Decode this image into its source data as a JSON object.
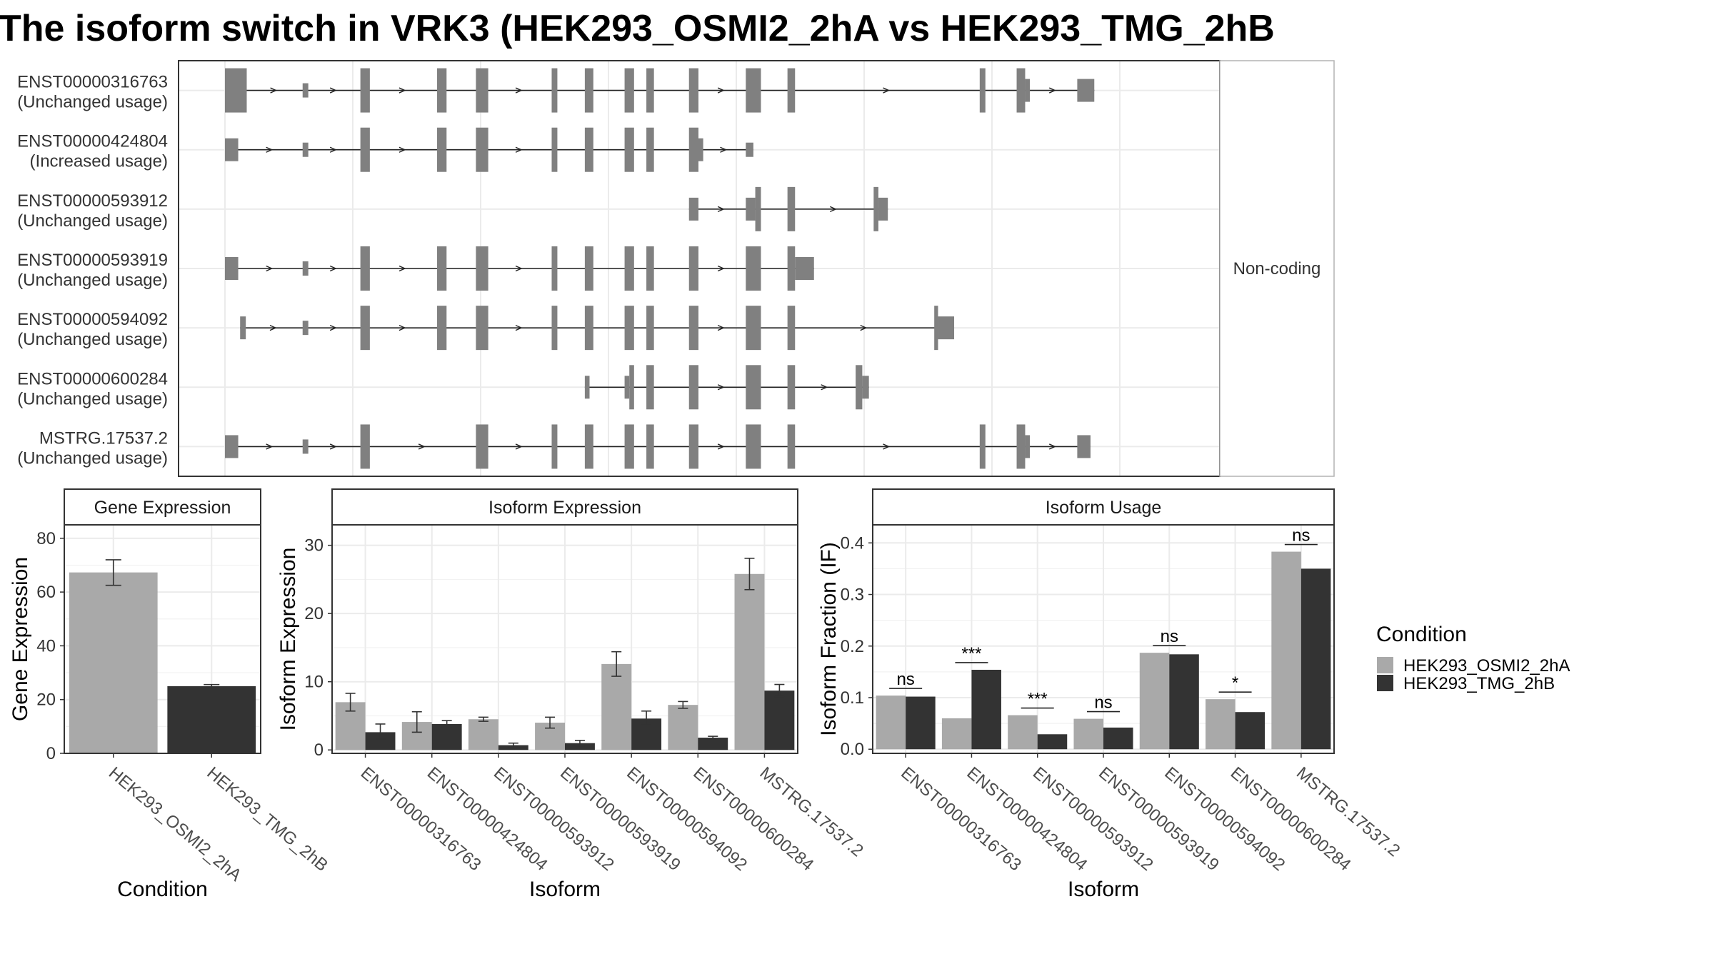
{
  "title": "The isoform switch in VRK3 (HEK293_OSMI2_2hA vs HEK293_TMG_2hB",
  "colors": {
    "cond1": "#a9a9a9",
    "cond2": "#333333",
    "exon": "#808080",
    "grid": "#ebebeb",
    "panel_border": "#333333",
    "strip_fill": "#ffffff"
  },
  "structure": {
    "side_label": "Non-coding",
    "xlim": [
      0,
      1000
    ],
    "transcripts": [
      {
        "id": "ENST00000316763",
        "usage": "(Unchanged usage)",
        "exons": [
          [
            0,
            23,
            "lg"
          ],
          [
            82,
            88,
            "sm"
          ],
          [
            143,
            153,
            "lg"
          ],
          [
            224,
            234,
            "lg"
          ],
          [
            265,
            278,
            "lg"
          ],
          [
            345,
            351,
            "lg"
          ],
          [
            380,
            389,
            "lg"
          ],
          [
            422,
            432,
            "lg"
          ],
          [
            445,
            453,
            "lg"
          ],
          [
            490,
            500,
            "lg"
          ],
          [
            550,
            566,
            "lg"
          ],
          [
            594,
            602,
            "lg"
          ],
          [
            797,
            803,
            "lg"
          ],
          [
            836,
            845,
            "lg"
          ],
          [
            845,
            850,
            "md"
          ],
          [
            900,
            918,
            "md"
          ]
        ]
      },
      {
        "id": "ENST00000424804",
        "usage": "(Increased usage)",
        "exons": [
          [
            0,
            14,
            "md"
          ],
          [
            82,
            88,
            "sm"
          ],
          [
            143,
            153,
            "lg"
          ],
          [
            224,
            234,
            "lg"
          ],
          [
            265,
            278,
            "lg"
          ],
          [
            345,
            351,
            "lg"
          ],
          [
            380,
            389,
            "lg"
          ],
          [
            422,
            432,
            "lg"
          ],
          [
            445,
            453,
            "lg"
          ],
          [
            490,
            500,
            "lg"
          ],
          [
            500,
            505,
            "md"
          ],
          [
            550,
            558,
            "sm"
          ]
        ]
      },
      {
        "id": "ENST00000593912",
        "usage": "(Unchanged usage)",
        "exons": [
          [
            490,
            500,
            "md"
          ],
          [
            550,
            560,
            "md"
          ],
          [
            560,
            566,
            "lg"
          ],
          [
            594,
            602,
            "lg"
          ],
          [
            685,
            690,
            "lg"
          ],
          [
            690,
            700,
            "md"
          ]
        ]
      },
      {
        "id": "ENST00000593919",
        "usage": "(Unchanged usage)",
        "exons": [
          [
            0,
            14,
            "md"
          ],
          [
            82,
            88,
            "sm"
          ],
          [
            143,
            153,
            "lg"
          ],
          [
            224,
            234,
            "lg"
          ],
          [
            265,
            278,
            "lg"
          ],
          [
            345,
            351,
            "lg"
          ],
          [
            380,
            389,
            "lg"
          ],
          [
            422,
            432,
            "lg"
          ],
          [
            445,
            453,
            "lg"
          ],
          [
            490,
            500,
            "lg"
          ],
          [
            550,
            566,
            "lg"
          ],
          [
            594,
            602,
            "lg"
          ],
          [
            602,
            622,
            "md"
          ]
        ]
      },
      {
        "id": "ENST00000594092",
        "usage": "(Unchanged usage)",
        "exons": [
          [
            16,
            22,
            "md"
          ],
          [
            82,
            88,
            "sm"
          ],
          [
            143,
            153,
            "lg"
          ],
          [
            224,
            234,
            "lg"
          ],
          [
            265,
            278,
            "lg"
          ],
          [
            345,
            351,
            "lg"
          ],
          [
            380,
            389,
            "lg"
          ],
          [
            422,
            432,
            "lg"
          ],
          [
            445,
            453,
            "lg"
          ],
          [
            490,
            500,
            "lg"
          ],
          [
            550,
            566,
            "lg"
          ],
          [
            594,
            602,
            "lg"
          ],
          [
            749,
            753,
            "lg"
          ],
          [
            753,
            770,
            "md"
          ]
        ]
      },
      {
        "id": "ENST00000600284",
        "usage": "(Unchanged usage)",
        "exons": [
          [
            380,
            385,
            "md"
          ],
          [
            422,
            427,
            "md"
          ],
          [
            427,
            432,
            "lg"
          ],
          [
            445,
            453,
            "lg"
          ],
          [
            490,
            500,
            "lg"
          ],
          [
            550,
            566,
            "lg"
          ],
          [
            594,
            602,
            "lg"
          ],
          [
            666,
            673,
            "lg"
          ],
          [
            673,
            680,
            "md"
          ]
        ]
      },
      {
        "id": "MSTRG.17537.2",
        "usage": "(Unchanged usage)",
        "exons": [
          [
            0,
            14,
            "md"
          ],
          [
            82,
            88,
            "sm"
          ],
          [
            143,
            153,
            "lg"
          ],
          [
            265,
            278,
            "lg"
          ],
          [
            345,
            351,
            "lg"
          ],
          [
            380,
            389,
            "lg"
          ],
          [
            422,
            432,
            "lg"
          ],
          [
            445,
            453,
            "lg"
          ],
          [
            490,
            500,
            "lg"
          ],
          [
            550,
            566,
            "lg"
          ],
          [
            594,
            602,
            "lg"
          ],
          [
            797,
            803,
            "lg"
          ],
          [
            836,
            845,
            "lg"
          ],
          [
            845,
            850,
            "md"
          ],
          [
            900,
            914,
            "md"
          ]
        ]
      }
    ]
  },
  "chart_data": [
    {
      "type": "bar",
      "title": "Gene Expression",
      "xlabel": "Condition",
      "ylabel": "Gene Expression",
      "ylim": [
        0,
        85
      ],
      "yticks": [
        0,
        20,
        40,
        60,
        80
      ],
      "categories": [
        "HEK293_OSMI2_2hA",
        "HEK293_TMG_2hB"
      ],
      "values": [
        67.3,
        25.0
      ],
      "errors": [
        [
          62.5,
          72.0
        ],
        [
          24.4,
          25.6
        ]
      ]
    },
    {
      "type": "bar",
      "title": "Isoform Expression",
      "xlabel": "Isoform",
      "ylabel": "Isoform Expression",
      "ylim": [
        -0.5,
        33
      ],
      "yticks": [
        0,
        10,
        20,
        30
      ],
      "categories": [
        "ENST00000316763",
        "ENST00000424804",
        "ENST00000593912",
        "ENST00000593919",
        "ENST00000594092",
        "ENST00000600284",
        "MSTRG.17537.2"
      ],
      "series": [
        {
          "name": "HEK293_OSMI2_2hA",
          "values": [
            7.0,
            4.1,
            4.5,
            4.0,
            12.6,
            6.6,
            25.8
          ],
          "errors": [
            [
              5.7,
              8.3
            ],
            [
              2.6,
              5.6
            ],
            [
              4.2,
              4.8
            ],
            [
              3.2,
              4.8
            ],
            [
              10.8,
              14.4
            ],
            [
              6.1,
              7.1
            ],
            [
              23.5,
              28.1
            ]
          ]
        },
        {
          "name": "HEK293_TMG_2hB",
          "values": [
            2.6,
            3.8,
            0.7,
            1.0,
            4.6,
            1.8,
            8.7
          ],
          "errors": [
            [
              1.6,
              3.8
            ],
            [
              3.3,
              4.3
            ],
            [
              0.4,
              1.0
            ],
            [
              0.6,
              1.4
            ],
            [
              3.7,
              5.7
            ],
            [
              1.6,
              2.0
            ],
            [
              7.8,
              9.6
            ]
          ]
        }
      ]
    },
    {
      "type": "bar",
      "title": "Isoform Usage",
      "xlabel": "Isoform",
      "ylabel": "Isoform Fraction (IF)",
      "ylim": [
        -0.008,
        0.435
      ],
      "yticks": [
        0.0,
        0.1,
        0.2,
        0.3,
        0.4
      ],
      "ytick_labels": [
        "0.0",
        "0.1",
        "0.2",
        "0.3",
        "0.4"
      ],
      "categories": [
        "ENST00000316763",
        "ENST00000424804",
        "ENST00000593912",
        "ENST00000593919",
        "ENST00000594092",
        "ENST00000600284",
        "MSTRG.17537.2"
      ],
      "series": [
        {
          "name": "HEK293_OSMI2_2hA",
          "values": [
            0.104,
            0.06,
            0.066,
            0.059,
            0.187,
            0.097,
            0.383
          ]
        },
        {
          "name": "HEK293_TMG_2hB",
          "values": [
            0.102,
            0.154,
            0.029,
            0.042,
            0.184,
            0.072,
            0.35
          ]
        }
      ],
      "significance": [
        "ns",
        "***",
        "***",
        "ns",
        "ns",
        "*",
        "ns"
      ]
    }
  ],
  "legend": {
    "title": "Condition",
    "labels": [
      "HEK293_OSMI2_2hA",
      "HEK293_TMG_2hB"
    ]
  }
}
